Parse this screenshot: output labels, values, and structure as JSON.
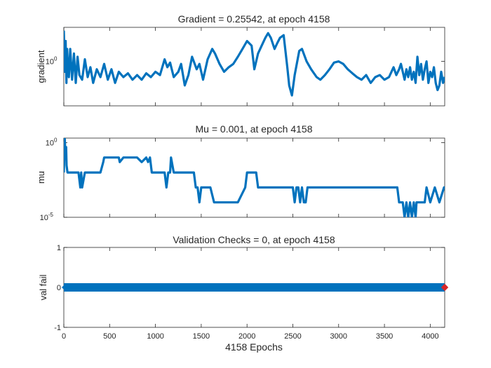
{
  "chart_data": [
    {
      "type": "line",
      "title": "Gradient = 0.25542, at epoch 4158",
      "xlabel": "",
      "ylabel": "gradient",
      "yscale": "log",
      "xlim": [
        0,
        4158
      ],
      "ylim": [
        0.02,
        20
      ],
      "yticks": [
        {
          "value": 1,
          "label": "10",
          "exp": "0"
        }
      ],
      "color": "#0072bd",
      "series": [
        {
          "x": [
            0,
            12,
            20,
            28,
            36,
            45,
            55,
            70,
            90,
            110,
            130,
            150,
            170,
            200,
            230,
            260,
            290,
            320,
            360,
            400,
            440,
            480,
            520,
            560,
            600,
            650,
            700,
            750,
            800,
            850,
            900,
            950,
            1000,
            1050,
            1100,
            1130,
            1160,
            1200,
            1250,
            1280,
            1320,
            1360,
            1400,
            1450,
            1480,
            1520,
            1570,
            1620,
            1650,
            1700,
            1750,
            1800,
            1850,
            1900,
            1950,
            2000,
            2050,
            2080,
            2120,
            2160,
            2200,
            2230,
            2260,
            2300,
            2330,
            2360,
            2400,
            2440,
            2460,
            2490,
            2520,
            2570,
            2600,
            2650,
            2700,
            2760,
            2800,
            2850,
            2900,
            2950,
            3000,
            3050,
            3100,
            3150,
            3200,
            3250,
            3300,
            3350,
            3400,
            3450,
            3500,
            3550,
            3600,
            3630,
            3660,
            3680,
            3700,
            3720,
            3740,
            3760,
            3780,
            3800,
            3820,
            3840,
            3860,
            3880,
            3900,
            3920,
            3940,
            3960,
            3980,
            4000,
            4020,
            4040,
            4060,
            4080,
            4100,
            4120,
            4140,
            4158
          ],
          "y": [
            15,
            0.4,
            6,
            0.15,
            3,
            0.6,
            0.25,
            3,
            0.2,
            2,
            0.15,
            1.5,
            0.3,
            0.2,
            1.2,
            0.25,
            0.6,
            0.15,
            0.5,
            0.25,
            0.8,
            0.2,
            0.5,
            0.15,
            0.4,
            0.25,
            0.35,
            0.2,
            0.3,
            0.2,
            0.35,
            0.25,
            0.4,
            0.3,
            1.2,
            0.6,
            0.9,
            0.25,
            0.4,
            0.8,
            0.12,
            0.3,
            1.5,
            0.5,
            0.8,
            0.2,
            1.2,
            3,
            2,
            0.8,
            0.4,
            0.6,
            0.8,
            1.5,
            3,
            6,
            4,
            0.5,
            2,
            4,
            8,
            12,
            8,
            3,
            5,
            8,
            10,
            0.6,
            0.12,
            0.05,
            0.3,
            2.5,
            3,
            1,
            0.5,
            0.25,
            0.2,
            0.3,
            0.5,
            0.9,
            1,
            0.8,
            0.5,
            0.35,
            0.25,
            0.2,
            0.3,
            0.15,
            0.25,
            0.3,
            0.2,
            0.25,
            0.6,
            0.3,
            0.5,
            0.8,
            0.4,
            0.2,
            0.5,
            0.25,
            0.6,
            0.2,
            0.4,
            0.15,
            1.5,
            0.3,
            0.8,
            0.2,
            0.5,
            1,
            0.15,
            0.4,
            0.25,
            0.6,
            0.15,
            0.08,
            0.12,
            0.4,
            0.15,
            0.25542
          ]
        }
      ]
    },
    {
      "type": "line",
      "title": "Mu = 0.001, at epoch 4158",
      "xlabel": "",
      "ylabel": "mu",
      "yscale": "log",
      "xlim": [
        0,
        4158
      ],
      "ylim": [
        1e-05,
        2
      ],
      "yticks": [
        {
          "value": 1,
          "label": "10",
          "exp": "0"
        },
        {
          "value": 1e-05,
          "label": "10",
          "exp": "-5"
        }
      ],
      "color": "#0072bd",
      "series": [
        {
          "x": [
            0,
            10,
            18,
            25,
            30,
            40,
            55,
            70,
            90,
            110,
            160,
            180,
            190,
            200,
            230,
            250,
            260,
            300,
            320,
            380,
            400,
            430,
            440,
            600,
            610,
            650,
            800,
            850,
            900,
            920,
            940,
            960,
            1000,
            1100,
            1120,
            1140,
            1160,
            1170,
            1200,
            1400,
            1420,
            1440,
            1460,
            1480,
            1500,
            1600,
            1640,
            1660,
            1700,
            1900,
            1980,
            2000,
            2100,
            2120,
            2140,
            2500,
            2520,
            2540,
            2560,
            2580,
            2600,
            2620,
            2640,
            2660,
            2700,
            3000,
            3400,
            3600,
            3640,
            3660,
            3700,
            3720,
            3740,
            3760,
            3780,
            3800,
            3820,
            3840,
            3850,
            3900,
            3940,
            3960,
            4000,
            4050,
            4100,
            4150,
            4158
          ],
          "y": [
            0.01,
            2,
            0.1,
            0.5,
            0.03,
            0.01,
            0.01,
            0.01,
            0.01,
            0.01,
            0.01,
            0.001,
            0.01,
            0.001,
            0.01,
            0.01,
            0.01,
            0.01,
            0.01,
            0.01,
            0.01,
            0.05,
            0.1,
            0.1,
            0.05,
            0.1,
            0.1,
            0.05,
            0.1,
            0.05,
            0.1,
            0.01,
            0.01,
            0.01,
            0.001,
            0.01,
            0.01,
            0.1,
            0.01,
            0.01,
            0.01,
            0.001,
            0.001,
            0.0001,
            0.001,
            0.001,
            0.0001,
            0.0001,
            0.0001,
            0.0001,
            0.001,
            0.01,
            0.01,
            0.001,
            0.001,
            0.001,
            0.0001,
            0.001,
            0.001,
            0.0001,
            0.001,
            0.0001,
            0.0001,
            0.001,
            0.001,
            0.001,
            0.001,
            0.001,
            0.001,
            0.0001,
            0.0001,
            1e-05,
            0.0001,
            1e-05,
            0.0001,
            1e-05,
            0.0001,
            1e-05,
            0.0001,
            0.0001,
            0.0001,
            0.001,
            0.0001,
            0.001,
            0.0001,
            0.001,
            0.001
          ]
        }
      ]
    },
    {
      "type": "scatter",
      "title": "Validation Checks = 0, at epoch 4158",
      "xlabel": "4158 Epochs",
      "ylabel": "val fail",
      "xlim": [
        0,
        4158
      ],
      "ylim": [
        -1,
        1
      ],
      "xticks": [
        0,
        500,
        1000,
        1500,
        2000,
        2500,
        3000,
        3500,
        4000
      ],
      "yticks": [
        -1,
        0,
        1
      ],
      "color": "#0072bd",
      "series": [
        {
          "x_range": [
            0,
            4158
          ],
          "y": 0
        }
      ],
      "highlight": {
        "x": 4158,
        "y": 0,
        "color": "#d62728"
      }
    }
  ]
}
